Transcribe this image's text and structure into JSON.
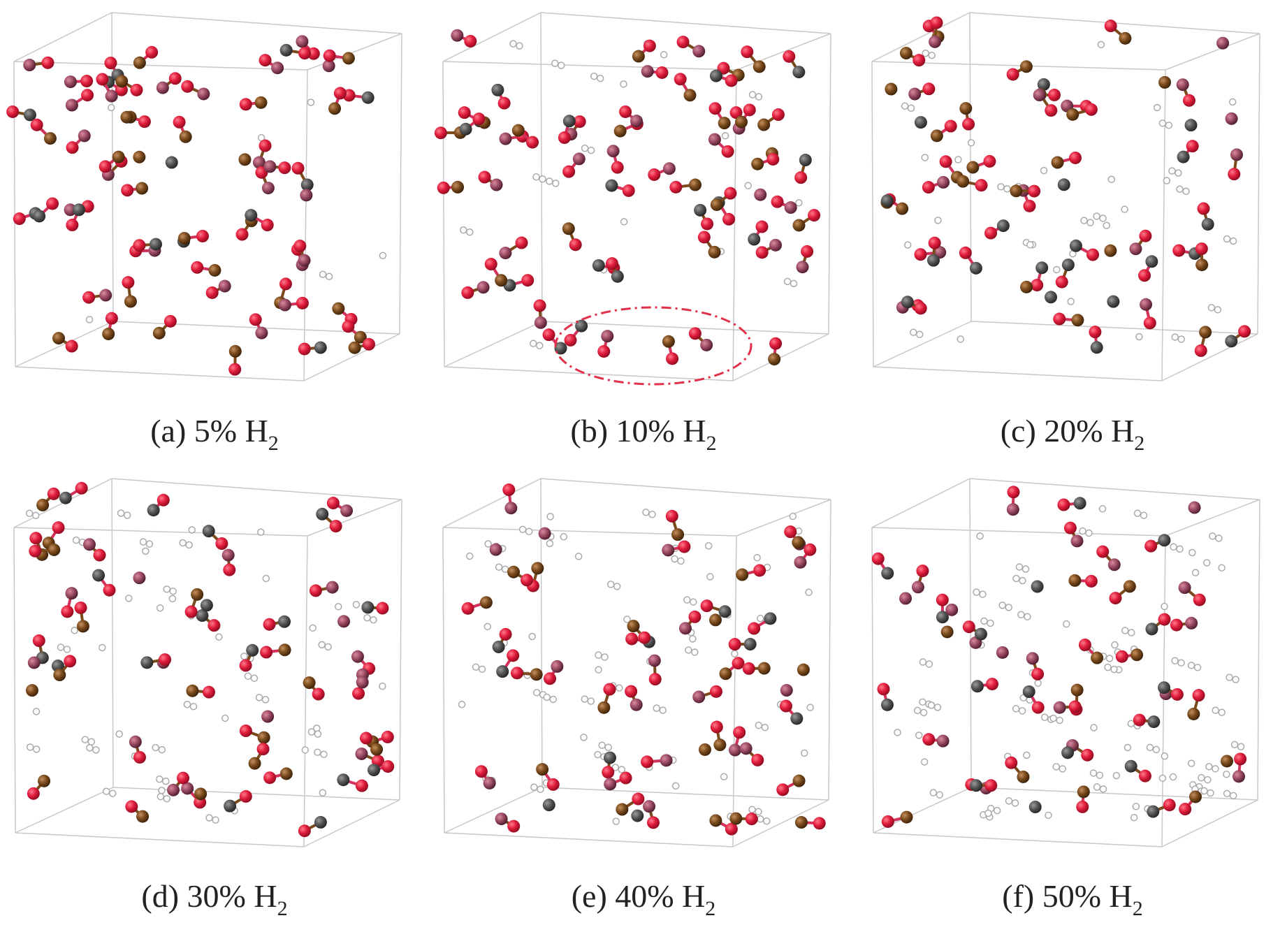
{
  "panels": [
    {
      "caption": "(a) 5% H",
      "subscript": "2"
    },
    {
      "caption": "(b) 10% H",
      "subscript": "2"
    },
    {
      "caption": "(c) 20% H",
      "subscript": "2"
    },
    {
      "caption": "(d) 30% H",
      "subscript": "2"
    },
    {
      "caption": "(e) 40% H",
      "subscript": "2"
    },
    {
      "caption": "(f) 50% H",
      "subscript": "2"
    }
  ]
}
